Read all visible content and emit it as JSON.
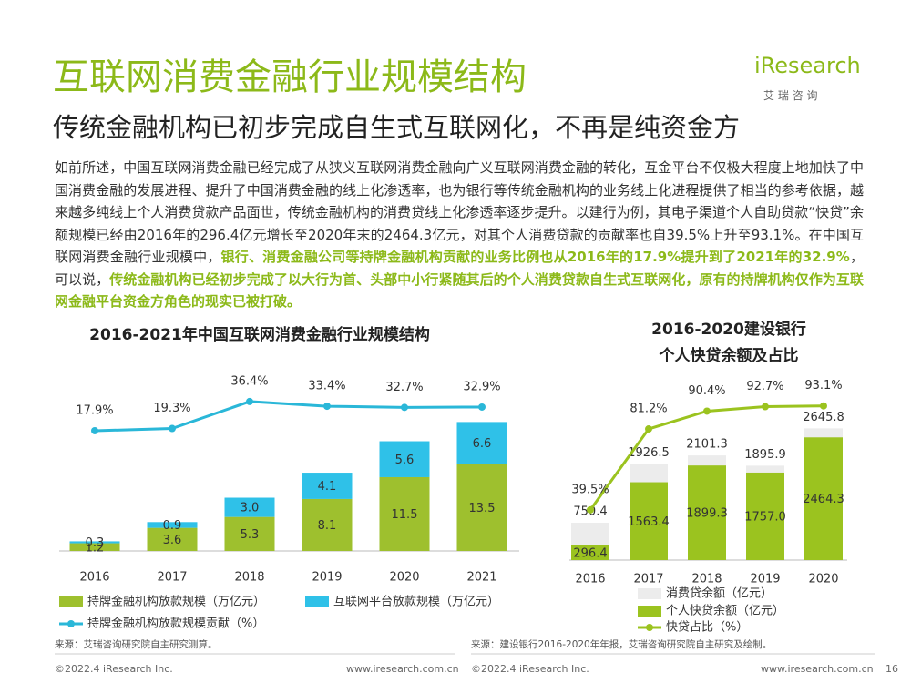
{
  "header": {
    "title": "互联网消费金融行业规模结构",
    "subtitle": "传统金融机构已初步完成自生式互联网化，不再是纯资金方",
    "logo": "iResearch",
    "logo_sub": "艾 瑞 咨 询"
  },
  "body": {
    "segments": [
      {
        "text": "如前所述，中国互联网消费金融已经完成了从狭义互联网消费金融向广义互联网消费金融的转化，互金平台不仅极大程度上地加快了中国消费金融的发展进程、提升了中国消费金融的线上化渗透率，也为银行等传统金融机构的业务线上化进程提供了相当的参考依据，越来越多纯线上个人消费贷款产品面世，传统金融机构的消费贷线上化渗透率逐步提升。以建行为例，其电子渠道个人自助贷款“快贷”余额规模已经由2016年的296.4亿元增长至2020年末的2464.3亿元，对其个人消费贷款的贡献率也自39.5%上升至93.1%。在中国互联网消费金融行业规模中，",
        "highlight": false
      },
      {
        "text": "银行、消费金融公司等持牌金融机构贡献的业务比例也从2016年的17.9%提升到了2021年的32.9%",
        "highlight": true
      },
      {
        "text": "，可以说，",
        "highlight": false
      },
      {
        "text": "传统金融机构已经初步完成了以大行为首、头部中小行紧随其后的个人消费贷款自生式互联网化，原有的持牌机构仅作为互联网金融平台资金方角色的现实已被打破。",
        "highlight": true
      }
    ]
  },
  "chart_data": [
    {
      "type": "bar",
      "stacked": true,
      "title": [
        "2016-2021年中国互联网消费金融行业规模结构"
      ],
      "categories": [
        "2016",
        "2017",
        "2018",
        "2019",
        "2020",
        "2021"
      ],
      "ylim": [
        0,
        22
      ],
      "y2lim": [
        0,
        60
      ],
      "series": [
        {
          "name": "持牌金融机构放款规模（万亿元）",
          "type": "bar",
          "color": "#9ec02e",
          "values": [
            1.2,
            3.6,
            5.3,
            8.1,
            11.5,
            13.5
          ]
        },
        {
          "name": "互联网平台放款规模（万亿元）",
          "type": "bar",
          "color": "#2fc1e8",
          "values": [
            0.3,
            0.9,
            3.0,
            4.1,
            5.6,
            6.6
          ],
          "value_labels": [
            "0.3",
            "0.9",
            "3.0",
            "4.1",
            "5.6",
            "6.6"
          ]
        },
        {
          "name": "持牌金融机构放款规模贡献（%）",
          "type": "line",
          "axis": "y2",
          "color": "#2ab7d8",
          "values": [
            17.9,
            19.3,
            36.4,
            33.4,
            32.7,
            32.9
          ],
          "value_labels": [
            "17.9%",
            "19.3%",
            "36.4%",
            "33.4%",
            "32.7%",
            "32.9%"
          ]
        }
      ],
      "source": "来源：艾瑞咨询研究院自主研究测算。"
    },
    {
      "type": "bar",
      "stacked": false,
      "title": [
        "2016-2020建设银行",
        "个人快贷余额及占比"
      ],
      "categories": [
        "2016",
        "2017",
        "2018",
        "2019",
        "2020"
      ],
      "ylim": [
        0,
        3000
      ],
      "y2lim": [
        0,
        100
      ],
      "series": [
        {
          "name": "消费贷余额（亿元）",
          "type": "bar",
          "color": "#ececec",
          "values": [
            750.4,
            1926.5,
            2101.3,
            1895.9,
            2645.8
          ]
        },
        {
          "name": "个人快贷余额（亿元）",
          "type": "bar",
          "color": "#9bc31f",
          "values": [
            296.4,
            1563.4,
            1899.3,
            1757.0,
            2464.3
          ],
          "value_labels": [
            "296.4",
            "1563.4",
            "1899.3",
            "1757.0",
            "2464.3"
          ]
        },
        {
          "name": "快贷占比（%）",
          "type": "line",
          "axis": "y2",
          "color": "#9bc31f",
          "values": [
            39.5,
            81.2,
            90.4,
            92.7,
            93.1
          ],
          "value_labels": [
            "39.5%",
            "81.2%",
            "90.4%",
            "92.7%",
            "93.1%"
          ]
        }
      ],
      "source": "来源：建设银行2016-2020年年报，艾瑞咨询研究院自主研究及绘制。"
    }
  ],
  "footer": {
    "copyright_left": "©2022.4 iResearch Inc.",
    "url_left": "www.iresearch.com.cn",
    "copyright_right": "©2022.4 iResearch Inc.",
    "url_right": "www.iresearch.com.cn",
    "page": "16"
  }
}
